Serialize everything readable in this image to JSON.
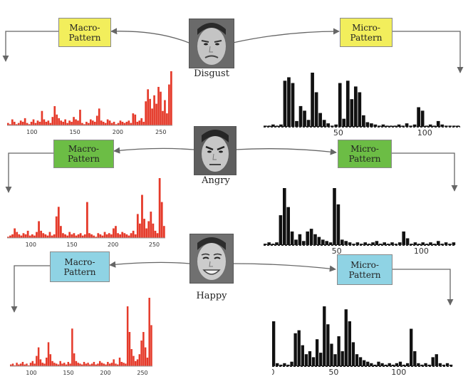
{
  "colors": {
    "macro_hist": "#e53a2a",
    "micro_hist": "#111111",
    "yellow_box": "#f2ee5c",
    "green_box": "#6cbd45",
    "blue_box": "#8fd3e4",
    "arrow": "#666666",
    "skin": "#c8c8c8"
  },
  "panels": [
    {
      "emotion": "Disgust",
      "macro": {
        "line1": "Macro-",
        "line2": "Pattern"
      },
      "micro": {
        "line1": "Micro-",
        "line2": "Pattern"
      },
      "macro_hist": {
        "ticks": [
          "100",
          "150",
          "200",
          "250"
        ],
        "values": [
          2,
          1,
          5,
          3,
          1,
          2,
          4,
          3,
          6,
          2,
          1,
          3,
          5,
          2,
          4,
          3,
          12,
          5,
          3,
          4,
          2,
          7,
          16,
          9,
          6,
          4,
          3,
          5,
          2,
          4,
          3,
          7,
          5,
          4,
          13,
          2,
          1,
          3,
          2,
          5,
          4,
          3,
          8,
          14,
          4,
          3,
          2,
          5,
          4,
          2,
          3,
          1,
          2,
          4,
          3,
          2,
          3,
          4,
          2,
          10,
          9,
          3,
          4,
          6,
          3,
          20,
          30,
          22,
          14,
          25,
          18,
          32,
          28,
          12,
          21,
          10,
          34,
          45
        ]
      },
      "micro_hist": {
        "ticks": [
          "50",
          "100"
        ],
        "values": [
          1,
          1,
          2,
          1,
          2,
          40,
          43,
          38,
          5,
          18,
          14,
          6,
          47,
          30,
          12,
          6,
          3,
          1,
          2,
          38,
          7,
          40,
          24,
          35,
          30,
          10,
          4,
          3,
          2,
          1,
          2,
          1,
          1,
          1,
          2,
          1,
          3,
          1,
          2,
          17,
          14,
          1,
          2,
          1,
          5,
          2,
          1,
          1,
          1,
          1
        ]
      }
    },
    {
      "emotion": "Angry",
      "macro": {
        "line1": "Macro-",
        "line2": "Pattern"
      },
      "micro": {
        "line1": "Micro-",
        "line2": "Pattern"
      },
      "macro_hist": {
        "ticks": [
          "100",
          "150",
          "200",
          "250"
        ],
        "values": [
          1,
          2,
          3,
          8,
          5,
          3,
          2,
          4,
          3,
          6,
          2,
          3,
          2,
          5,
          14,
          6,
          4,
          3,
          2,
          5,
          2,
          3,
          18,
          26,
          10,
          4,
          3,
          2,
          5,
          3,
          4,
          2,
          3,
          4,
          2,
          3,
          30,
          4,
          3,
          2,
          1,
          4,
          3,
          2,
          5,
          3,
          4,
          3,
          8,
          10,
          4,
          3,
          5,
          4,
          3,
          2,
          4,
          6,
          3,
          20,
          12,
          36,
          16,
          8,
          14,
          22,
          12,
          6,
          4,
          50,
          30,
          10
        ]
      },
      "micro_hist": {
        "ticks": [
          "50",
          "100"
        ],
        "values": [
          1,
          2,
          1,
          2,
          22,
          42,
          28,
          10,
          4,
          8,
          3,
          10,
          12,
          8,
          6,
          4,
          3,
          2,
          42,
          30,
          4,
          3,
          2,
          1,
          2,
          1,
          2,
          1,
          2,
          3,
          1,
          2,
          1,
          2,
          1,
          2,
          10,
          5,
          1,
          2,
          1,
          2,
          1,
          2,
          1,
          3,
          1,
          2,
          1,
          2
        ]
      }
    },
    {
      "emotion": "Happy",
      "macro": {
        "line1": "Macro-",
        "line2": "Pattern"
      },
      "micro": {
        "line1": "Micro-",
        "line2": "Pattern"
      },
      "macro_hist": {
        "ticks": [
          "100",
          "150",
          "200",
          "250"
        ],
        "values": [
          2,
          3,
          1,
          4,
          2,
          3,
          5,
          2,
          3,
          1,
          4,
          6,
          3,
          12,
          22,
          8,
          4,
          3,
          10,
          28,
          14,
          6,
          4,
          3,
          2,
          6,
          3,
          4,
          2,
          5,
          3,
          44,
          15,
          6,
          4,
          3,
          2,
          5,
          3,
          4,
          2,
          3,
          5,
          2,
          3,
          6,
          4,
          3,
          2,
          5,
          3,
          4,
          8,
          3,
          2,
          10,
          5,
          4,
          3,
          70,
          40,
          20,
          12,
          6,
          8,
          14,
          30,
          40,
          22,
          10,
          80,
          48
        ]
      },
      "micro_hist": {
        "ticks": [
          "0",
          "50",
          "100"
        ],
        "values": [
          30,
          2,
          1,
          2,
          1,
          3,
          22,
          24,
          14,
          8,
          10,
          6,
          18,
          9,
          40,
          28,
          15,
          8,
          20,
          10,
          38,
          30,
          16,
          8,
          6,
          4,
          3,
          2,
          1,
          3,
          2,
          1,
          2,
          1,
          2,
          3,
          1,
          2,
          25,
          10,
          2,
          1,
          2,
          1,
          6,
          8,
          2,
          1,
          2,
          1
        ]
      }
    }
  ]
}
